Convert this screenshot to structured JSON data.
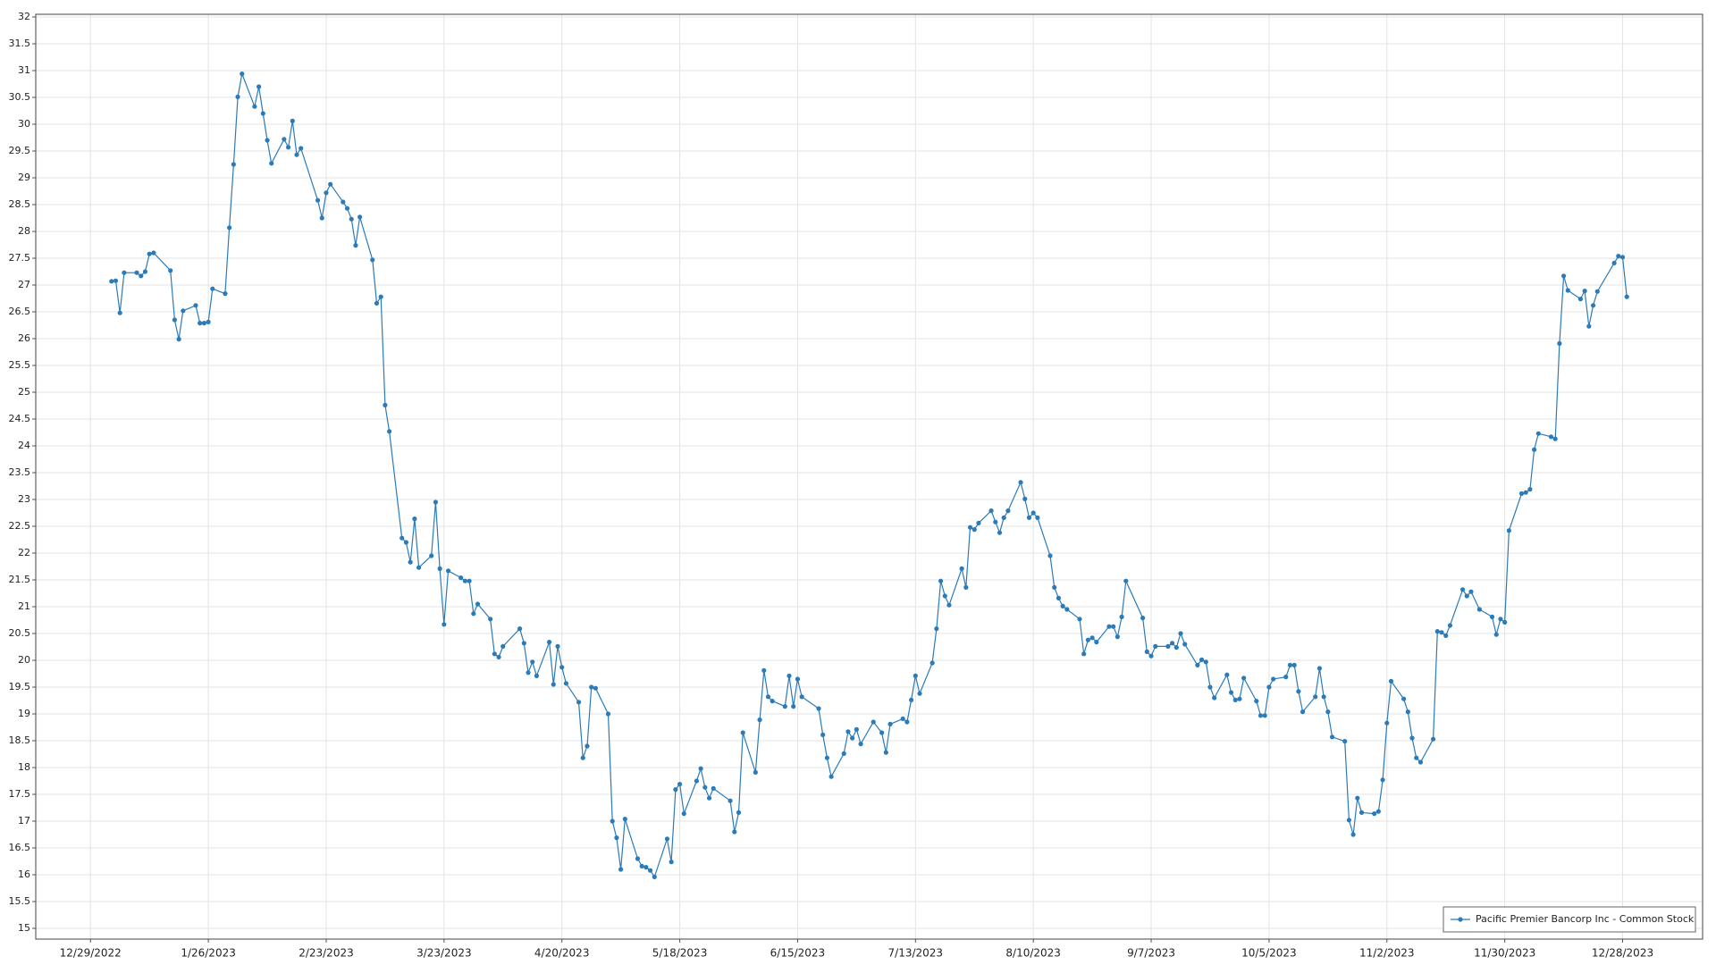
{
  "chart_data": {
    "type": "line",
    "x": [
      "2023-01-03",
      "2023-01-04",
      "2023-01-05",
      "2023-01-06",
      "2023-01-09",
      "2023-01-10",
      "2023-01-11",
      "2023-01-12",
      "2023-01-13",
      "2023-01-17",
      "2023-01-18",
      "2023-01-19",
      "2023-01-20",
      "2023-01-23",
      "2023-01-24",
      "2023-01-25",
      "2023-01-26",
      "2023-01-27",
      "2023-01-30",
      "2023-01-31",
      "2023-02-01",
      "2023-02-02",
      "2023-02-03",
      "2023-02-06",
      "2023-02-07",
      "2023-02-08",
      "2023-02-09",
      "2023-02-10",
      "2023-02-13",
      "2023-02-14",
      "2023-02-15",
      "2023-02-16",
      "2023-02-17",
      "2023-02-21",
      "2023-02-22",
      "2023-02-23",
      "2023-02-24",
      "2023-02-27",
      "2023-02-28",
      "2023-03-01",
      "2023-03-02",
      "2023-03-03",
      "2023-03-06",
      "2023-03-07",
      "2023-03-08",
      "2023-03-09",
      "2023-03-10",
      "2023-03-13",
      "2023-03-14",
      "2023-03-15",
      "2023-03-16",
      "2023-03-17",
      "2023-03-20",
      "2023-03-21",
      "2023-03-22",
      "2023-03-23",
      "2023-03-24",
      "2023-03-27",
      "2023-03-28",
      "2023-03-29",
      "2023-03-30",
      "2023-03-31",
      "2023-04-03",
      "2023-04-04",
      "2023-04-05",
      "2023-04-06",
      "2023-04-10",
      "2023-04-11",
      "2023-04-12",
      "2023-04-13",
      "2023-04-14",
      "2023-04-17",
      "2023-04-18",
      "2023-04-19",
      "2023-04-20",
      "2023-04-21",
      "2023-04-24",
      "2023-04-25",
      "2023-04-26",
      "2023-04-27",
      "2023-04-28",
      "2023-05-01",
      "2023-05-02",
      "2023-05-03",
      "2023-05-04",
      "2023-05-05",
      "2023-05-08",
      "2023-05-09",
      "2023-05-10",
      "2023-05-11",
      "2023-05-12",
      "2023-05-15",
      "2023-05-16",
      "2023-05-17",
      "2023-05-18",
      "2023-05-19",
      "2023-05-22",
      "2023-05-23",
      "2023-05-24",
      "2023-05-25",
      "2023-05-26",
      "2023-05-30",
      "2023-05-31",
      "2023-06-01",
      "2023-06-02",
      "2023-06-05",
      "2023-06-06",
      "2023-06-07",
      "2023-06-08",
      "2023-06-09",
      "2023-06-12",
      "2023-06-13",
      "2023-06-14",
      "2023-06-15",
      "2023-06-16",
      "2023-06-20",
      "2023-06-21",
      "2023-06-22",
      "2023-06-23",
      "2023-06-26",
      "2023-06-27",
      "2023-06-28",
      "2023-06-29",
      "2023-06-30",
      "2023-07-03",
      "2023-07-05",
      "2023-07-06",
      "2023-07-07",
      "2023-07-10",
      "2023-07-11",
      "2023-07-12",
      "2023-07-13",
      "2023-07-14",
      "2023-07-17",
      "2023-07-18",
      "2023-07-19",
      "2023-07-20",
      "2023-07-21",
      "2023-07-24",
      "2023-07-25",
      "2023-07-26",
      "2023-07-27",
      "2023-07-28",
      "2023-07-31",
      "2023-08-01",
      "2023-08-02",
      "2023-08-03",
      "2023-08-04",
      "2023-08-07",
      "2023-08-08",
      "2023-08-09",
      "2023-08-10",
      "2023-08-11",
      "2023-08-14",
      "2023-08-15",
      "2023-08-16",
      "2023-08-17",
      "2023-08-18",
      "2023-08-21",
      "2023-08-22",
      "2023-08-23",
      "2023-08-24",
      "2023-08-25",
      "2023-08-28",
      "2023-08-29",
      "2023-08-30",
      "2023-08-31",
      "2023-09-01",
      "2023-09-05",
      "2023-09-06",
      "2023-09-07",
      "2023-09-08",
      "2023-09-11",
      "2023-09-12",
      "2023-09-13",
      "2023-09-14",
      "2023-09-15",
      "2023-09-18",
      "2023-09-19",
      "2023-09-20",
      "2023-09-21",
      "2023-09-22",
      "2023-09-25",
      "2023-09-26",
      "2023-09-27",
      "2023-09-28",
      "2023-09-29",
      "2023-10-02",
      "2023-10-03",
      "2023-10-04",
      "2023-10-05",
      "2023-10-06",
      "2023-10-09",
      "2023-10-10",
      "2023-10-11",
      "2023-10-12",
      "2023-10-13",
      "2023-10-16",
      "2023-10-17",
      "2023-10-18",
      "2023-10-19",
      "2023-10-20",
      "2023-10-23",
      "2023-10-24",
      "2023-10-25",
      "2023-10-26",
      "2023-10-27",
      "2023-10-30",
      "2023-10-31",
      "2023-11-01",
      "2023-11-02",
      "2023-11-03",
      "2023-11-06",
      "2023-11-07",
      "2023-11-08",
      "2023-11-09",
      "2023-11-10",
      "2023-11-13",
      "2023-11-14",
      "2023-11-15",
      "2023-11-16",
      "2023-11-17",
      "2023-11-20",
      "2023-11-21",
      "2023-11-22",
      "2023-11-24",
      "2023-11-27",
      "2023-11-28",
      "2023-11-29",
      "2023-11-30",
      "2023-12-01",
      "2023-12-04",
      "2023-12-05",
      "2023-12-06",
      "2023-12-07",
      "2023-12-08",
      "2023-12-11",
      "2023-12-12",
      "2023-12-13",
      "2023-12-14",
      "2023-12-15",
      "2023-12-18",
      "2023-12-19",
      "2023-12-20",
      "2023-12-21",
      "2023-12-22",
      "2023-12-26",
      "2023-12-27",
      "2023-12-28",
      "2023-12-29"
    ],
    "series": [
      {
        "name": "Pacific Premier Bancorp Inc - Common Stock",
        "color": "#2b7bb9",
        "values": [
          27.07,
          27.08,
          26.48,
          27.23,
          27.23,
          27.17,
          27.25,
          27.58,
          27.6,
          27.27,
          26.35,
          25.99,
          26.52,
          26.62,
          26.29,
          26.29,
          26.31,
          26.93,
          26.84,
          28.07,
          29.25,
          30.51,
          30.94,
          30.33,
          30.7,
          30.2,
          29.7,
          29.27,
          29.72,
          29.57,
          30.06,
          29.43,
          29.55,
          28.58,
          28.25,
          28.72,
          28.88,
          28.55,
          28.43,
          28.23,
          27.74,
          28.27,
          27.47,
          26.66,
          26.78,
          24.76,
          24.27,
          22.28,
          22.2,
          21.83,
          22.64,
          21.73,
          21.95,
          22.95,
          21.71,
          20.67,
          21.67,
          21.54,
          21.48,
          21.48,
          20.87,
          21.05,
          20.77,
          20.12,
          20.06,
          20.26,
          20.59,
          20.32,
          19.77,
          19.97,
          19.71,
          20.34,
          19.55,
          20.26,
          19.87,
          19.57,
          19.22,
          18.18,
          18.4,
          19.5,
          19.48,
          19.0,
          17.0,
          16.69,
          16.1,
          17.04,
          16.3,
          16.16,
          16.14,
          16.08,
          15.96,
          16.67,
          16.24,
          17.59,
          17.69,
          17.14,
          17.75,
          17.98,
          17.63,
          17.43,
          17.61,
          17.38,
          16.8,
          17.16,
          18.65,
          17.91,
          18.89,
          19.81,
          19.32,
          19.24,
          19.14,
          19.71,
          19.14,
          19.65,
          19.32,
          19.1,
          18.61,
          18.18,
          17.83,
          18.26,
          18.67,
          18.55,
          18.71,
          18.44,
          18.85,
          18.65,
          18.28,
          18.81,
          18.91,
          18.85,
          19.26,
          19.71,
          19.38,
          19.95,
          20.59,
          21.48,
          21.2,
          21.03,
          21.71,
          21.36,
          22.48,
          22.44,
          22.56,
          22.79,
          22.58,
          22.38,
          22.66,
          22.79,
          23.32,
          23.01,
          22.66,
          22.75,
          22.66,
          21.95,
          21.36,
          21.16,
          21.01,
          20.95,
          20.77,
          20.12,
          20.38,
          20.42,
          20.34,
          20.63,
          20.63,
          20.44,
          20.81,
          21.48,
          20.79,
          20.16,
          20.08,
          20.26,
          20.26,
          20.32,
          20.24,
          20.5,
          20.3,
          19.91,
          20.01,
          19.97,
          19.5,
          19.3,
          19.73,
          19.4,
          19.26,
          19.28,
          19.67,
          19.24,
          18.97,
          18.97,
          19.5,
          19.65,
          19.69,
          19.91,
          19.91,
          19.42,
          19.04,
          19.32,
          19.85,
          19.32,
          19.04,
          18.57,
          18.49,
          17.02,
          16.75,
          17.43,
          17.16,
          17.14,
          17.18,
          17.77,
          18.83,
          19.61,
          19.28,
          19.04,
          18.55,
          18.18,
          18.1,
          18.53,
          20.54,
          20.52,
          20.46,
          20.65,
          21.32,
          21.2,
          21.28,
          20.95,
          20.81,
          20.48,
          20.77,
          20.71,
          22.42,
          23.11,
          23.13,
          23.19,
          23.93,
          24.23,
          24.17,
          24.13,
          25.91,
          27.17,
          26.9,
          26.74,
          26.89,
          26.23,
          26.62,
          26.88,
          27.41,
          27.54,
          27.52,
          26.78
        ]
      }
    ],
    "xlim": [
      "2022-12-16",
      "2024-01-16"
    ],
    "xticks": [
      {
        "value": "2022-12-29",
        "label": "12/29/2022"
      },
      {
        "value": "2023-01-26",
        "label": "1/26/2023"
      },
      {
        "value": "2023-02-23",
        "label": "2/23/2023"
      },
      {
        "value": "2023-03-23",
        "label": "3/23/2023"
      },
      {
        "value": "2023-04-20",
        "label": "4/20/2023"
      },
      {
        "value": "2023-05-18",
        "label": "5/18/2023"
      },
      {
        "value": "2023-06-15",
        "label": "6/15/2023"
      },
      {
        "value": "2023-07-13",
        "label": "7/13/2023"
      },
      {
        "value": "2023-08-10",
        "label": "8/10/2023"
      },
      {
        "value": "2023-09-07",
        "label": "9/7/2023"
      },
      {
        "value": "2023-10-05",
        "label": "10/5/2023"
      },
      {
        "value": "2023-11-02",
        "label": "11/2/2023"
      },
      {
        "value": "2023-11-30",
        "label": "11/30/2023"
      },
      {
        "value": "2023-12-28",
        "label": "12/28/2023"
      }
    ],
    "ylim": [
      14.8,
      32.05
    ],
    "yticks": [
      15,
      15.5,
      16,
      16.5,
      17,
      17.5,
      18,
      18.5,
      19,
      19.5,
      20,
      20.5,
      21,
      21.5,
      22,
      22.5,
      23,
      23.5,
      24,
      24.5,
      25,
      25.5,
      26,
      26.5,
      27,
      27.5,
      28,
      28.5,
      29,
      29.5,
      30,
      30.5,
      31,
      31.5,
      32
    ],
    "grid": true,
    "legend": "lower right"
  }
}
